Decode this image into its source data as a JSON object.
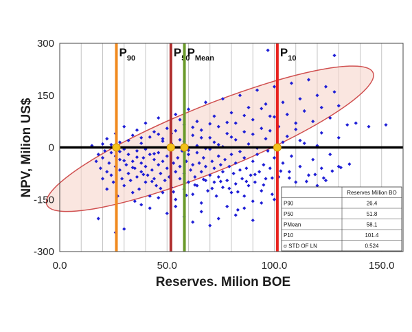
{
  "chart_data": {
    "type": "scatter",
    "xlabel": "Reserves. Milion BOE",
    "ylabel": "NPV, Milion  US$",
    "xlim": [
      0,
      160
    ],
    "ylim": [
      -300,
      300
    ],
    "x_ticks": [
      "0.0",
      "50.0",
      "100.0",
      "150.0"
    ],
    "y_ticks": [
      "300",
      "150",
      "0",
      "-150",
      "-300"
    ],
    "grid": "vertical",
    "colors": {
      "points": "#1f1fd6",
      "zero_line": "#000000",
      "ellipse_stroke": "#d05050",
      "ellipse_fill": "#f6d6cc",
      "intersection_marker": "#f2c21a",
      "p90_line": "#f08a1e",
      "p50_line": "#b03030",
      "pmean_line": "#6a9a2a",
      "p10_line": "#e8221e"
    },
    "vertical_lines": [
      {
        "main": "P",
        "sub": "90",
        "x": 26.4,
        "color_key": "p90_line"
      },
      {
        "main": "P",
        "sub": "50",
        "x": 51.8,
        "color_key": "p50_line"
      },
      {
        "main": "P",
        "sub": "Mean",
        "x": 58.1,
        "color_key": "pmean_line"
      },
      {
        "main": "P",
        "sub": "10",
        "x": 101.4,
        "color_key": "p10_line"
      }
    ],
    "ellipse": {
      "center_x": 70,
      "center_y": 25,
      "semi_x": 82,
      "semi_y": 95,
      "rotation_deg": -22
    },
    "table": {
      "header": "Reserves Million BO",
      "rows": [
        {
          "label": "P90",
          "value": "26.4"
        },
        {
          "label": "P50",
          "value": "51.8"
        },
        {
          "label": "PMean",
          "value": "58.1"
        },
        {
          "label": "P10",
          "value": "101.4"
        },
        {
          "label": "σ   STD OF LN",
          "value": "0.524"
        }
      ]
    },
    "series": [
      {
        "points": [
          [
            15,
            5
          ],
          [
            17,
            -40
          ],
          [
            18,
            -20
          ],
          [
            19,
            -60
          ],
          [
            20,
            -90
          ],
          [
            20,
            -30
          ],
          [
            21,
            -10
          ],
          [
            22,
            -70
          ],
          [
            22,
            -120
          ],
          [
            23,
            -45
          ],
          [
            24,
            -80
          ],
          [
            24,
            -15
          ],
          [
            25,
            -100
          ],
          [
            26,
            -55
          ],
          [
            26,
            -25
          ],
          [
            27,
            -140
          ],
          [
            28,
            -65
          ],
          [
            28,
            -35
          ],
          [
            29,
            -90
          ],
          [
            30,
            -5
          ],
          [
            30,
            -110
          ],
          [
            31,
            -50
          ],
          [
            32,
            -75
          ],
          [
            32,
            -20
          ],
          [
            33,
            -95
          ],
          [
            34,
            -40
          ],
          [
            34,
            -130
          ],
          [
            35,
            -60
          ],
          [
            36,
            -85
          ],
          [
            36,
            -10
          ],
          [
            37,
            -120
          ],
          [
            38,
            -45
          ],
          [
            38,
            -70
          ],
          [
            39,
            -30
          ],
          [
            40,
            -100
          ],
          [
            40,
            -55
          ],
          [
            41,
            -80
          ],
          [
            42,
            -20
          ],
          [
            42,
            -140
          ],
          [
            43,
            -65
          ],
          [
            44,
            -90
          ],
          [
            44,
            -35
          ],
          [
            45,
            -110
          ],
          [
            46,
            -50
          ],
          [
            46,
            -15
          ],
          [
            47,
            -75
          ],
          [
            48,
            -130
          ],
          [
            48,
            -40
          ],
          [
            49,
            -95
          ],
          [
            50,
            -60
          ],
          [
            50,
            -25
          ],
          [
            51,
            -85
          ],
          [
            52,
            -5
          ],
          [
            52,
            -115
          ],
          [
            53,
            -45
          ],
          [
            54,
            -70
          ],
          [
            54,
            -150
          ],
          [
            55,
            -30
          ],
          [
            56,
            -90
          ],
          [
            56,
            -55
          ],
          [
            57,
            -10
          ],
          [
            58,
            -120
          ],
          [
            58,
            -75
          ],
          [
            59,
            -40
          ],
          [
            60,
            -100
          ],
          [
            60,
            -20
          ],
          [
            61,
            -65
          ],
          [
            62,
            -135
          ],
          [
            62,
            -50
          ],
          [
            63,
            -85
          ],
          [
            64,
            -15
          ],
          [
            64,
            -110
          ],
          [
            65,
            -45
          ],
          [
            66,
            -70
          ],
          [
            66,
            -160
          ],
          [
            67,
            -30
          ],
          [
            68,
            -95
          ],
          [
            68,
            -55
          ],
          [
            69,
            -125
          ],
          [
            70,
            -80
          ],
          [
            70,
            -5
          ],
          [
            71,
            -40
          ],
          [
            72,
            -100
          ],
          [
            72,
            -60
          ],
          [
            73,
            -140
          ],
          [
            74,
            -25
          ],
          [
            74,
            -85
          ],
          [
            75,
            -50
          ],
          [
            76,
            -115
          ],
          [
            76,
            -70
          ],
          [
            77,
            -35
          ],
          [
            78,
            -95
          ],
          [
            78,
            -170
          ],
          [
            79,
            -55
          ],
          [
            80,
            -130
          ],
          [
            80,
            -20
          ],
          [
            81,
            -75
          ],
          [
            82,
            -45
          ],
          [
            82,
            -105
          ],
          [
            83,
            -180
          ],
          [
            84,
            -65
          ],
          [
            85,
            -90
          ],
          [
            86,
            -30
          ],
          [
            86,
            -140
          ],
          [
            87,
            -60
          ],
          [
            88,
            -110
          ],
          [
            89,
            -80
          ],
          [
            90,
            -40
          ],
          [
            90,
            -155
          ],
          [
            91,
            -100
          ],
          [
            92,
            -20
          ],
          [
            93,
            -70
          ],
          [
            94,
            -125
          ],
          [
            95,
            -50
          ],
          [
            96,
            -90
          ],
          [
            97,
            -10
          ],
          [
            98,
            -60
          ],
          [
            99,
            -135
          ],
          [
            100,
            -30
          ],
          [
            102,
            -85
          ],
          [
            104,
            -45
          ],
          [
            105,
            -120
          ],
          [
            107,
            -70
          ],
          [
            108,
            -25
          ],
          [
            110,
            -100
          ],
          [
            112,
            -55
          ],
          [
            114,
            -140
          ],
          [
            116,
            -80
          ],
          [
            118,
            -35
          ],
          [
            120,
            -110
          ],
          [
            122,
            -60
          ],
          [
            124,
            -95
          ],
          [
            126,
            -20
          ],
          [
            128,
            -125
          ],
          [
            130,
            -55
          ],
          [
            20,
            10
          ],
          [
            22,
            25
          ],
          [
            24,
            8
          ],
          [
            26,
            40
          ],
          [
            28,
            15
          ],
          [
            30,
            60
          ],
          [
            32,
            20
          ],
          [
            34,
            35
          ],
          [
            36,
            50
          ],
          [
            38,
            12
          ],
          [
            40,
            70
          ],
          [
            42,
            30
          ],
          [
            44,
            45
          ],
          [
            46,
            85
          ],
          [
            48,
            18
          ],
          [
            50,
            55
          ],
          [
            52,
            40
          ],
          [
            54,
            95
          ],
          [
            56,
            22
          ],
          [
            58,
            65
          ],
          [
            60,
            110
          ],
          [
            62,
            35
          ],
          [
            64,
            75
          ],
          [
            66,
            50
          ],
          [
            68,
            130
          ],
          [
            70,
            28
          ],
          [
            72,
            90
          ],
          [
            74,
            60
          ],
          [
            76,
            140
          ],
          [
            78,
            40
          ],
          [
            80,
            100
          ],
          [
            82,
            70
          ],
          [
            84,
            150
          ],
          [
            86,
            45
          ],
          [
            88,
            115
          ],
          [
            90,
            80
          ],
          [
            92,
            165
          ],
          [
            94,
            55
          ],
          [
            96,
            125
          ],
          [
            98,
            90
          ],
          [
            100,
            175
          ],
          [
            102,
            60
          ],
          [
            104,
            130
          ],
          [
            106,
            95
          ],
          [
            108,
            185
          ],
          [
            110,
            70
          ],
          [
            112,
            140
          ],
          [
            114,
            105
          ],
          [
            116,
            195
          ],
          [
            118,
            75
          ],
          [
            120,
            150
          ],
          [
            122,
            115
          ],
          [
            124,
            175
          ],
          [
            126,
            85
          ],
          [
            128,
            160
          ],
          [
            130,
            120
          ],
          [
            134,
            65
          ],
          [
            138,
            70
          ],
          [
            144,
            60
          ],
          [
            152,
            65
          ],
          [
            128,
            265
          ],
          [
            97,
            280
          ],
          [
            48,
            25
          ],
          [
            56,
            80
          ],
          [
            64,
            5
          ],
          [
            72,
            15
          ],
          [
            80,
            30
          ],
          [
            88,
            10
          ],
          [
            96,
            25
          ],
          [
            104,
            15
          ],
          [
            112,
            20
          ],
          [
            120,
            5
          ],
          [
            35,
            -155
          ],
          [
            42,
            -175
          ],
          [
            50,
            -190
          ],
          [
            58,
            -200
          ],
          [
            66,
            -185
          ],
          [
            74,
            -205
          ],
          [
            82,
            -195
          ],
          [
            90,
            -210
          ],
          [
            62,
            -215
          ],
          [
            70,
            -225
          ],
          [
            26,
            -245
          ],
          [
            30,
            -235
          ],
          [
            18,
            -205
          ],
          [
            38,
            -165
          ],
          [
            46,
            -145
          ],
          [
            54,
            -170
          ],
          [
            86,
            -175
          ],
          [
            94,
            -160
          ],
          [
            100,
            -150
          ],
          [
            108,
            -150
          ],
          [
            116,
            -145
          ],
          [
            124,
            -150
          ],
          [
            132,
            -130
          ],
          [
            104,
            -165
          ],
          [
            112,
            -175
          ],
          [
            120,
            -160
          ],
          [
            128,
            -170
          ],
          [
            131,
            -145
          ],
          [
            137,
            -170
          ],
          [
            40,
            -5
          ],
          [
            60,
            -8
          ],
          [
            76,
            2
          ],
          [
            84,
            -12
          ],
          [
            92,
            -2
          ],
          [
            68,
            -3
          ],
          [
            52,
            12
          ],
          [
            44,
            -18
          ],
          [
            36,
            -28
          ],
          [
            28,
            -12
          ],
          [
            58,
            18
          ],
          [
            66,
            28
          ],
          [
            74,
            8
          ],
          [
            82,
            22
          ],
          [
            90,
            38
          ],
          [
            98,
            48
          ],
          [
            106,
            32
          ],
          [
            114,
            12
          ],
          [
            122,
            42
          ],
          [
            130,
            28
          ],
          [
            110,
            52
          ],
          [
            100,
            88
          ],
          [
            94,
            112
          ],
          [
            86,
            92
          ],
          [
            78,
            72
          ],
          [
            70,
            68
          ],
          [
            62,
            58
          ],
          [
            54,
            48
          ],
          [
            46,
            38
          ],
          [
            38,
            28
          ],
          [
            30,
            -38
          ],
          [
            34,
            -58
          ],
          [
            39,
            -78
          ],
          [
            43,
            -98
          ],
          [
            47,
            -118
          ],
          [
            53,
            -128
          ],
          [
            59,
            -138
          ],
          [
            63,
            -108
          ],
          [
            67,
            -92
          ],
          [
            71,
            -118
          ],
          [
            75,
            -98
          ],
          [
            79,
            -118
          ],
          [
            83,
            -128
          ],
          [
            87,
            -98
          ],
          [
            91,
            -78
          ],
          [
            95,
            -108
          ],
          [
            99,
            -88
          ],
          [
            103,
            -68
          ],
          [
            107,
            -88
          ],
          [
            111,
            -118
          ],
          [
            115,
            -98
          ],
          [
            119,
            -78
          ],
          [
            123,
            -88
          ],
          [
            127,
            -68
          ],
          [
            131,
            -58
          ],
          [
            135,
            -48
          ]
        ]
      }
    ]
  }
}
